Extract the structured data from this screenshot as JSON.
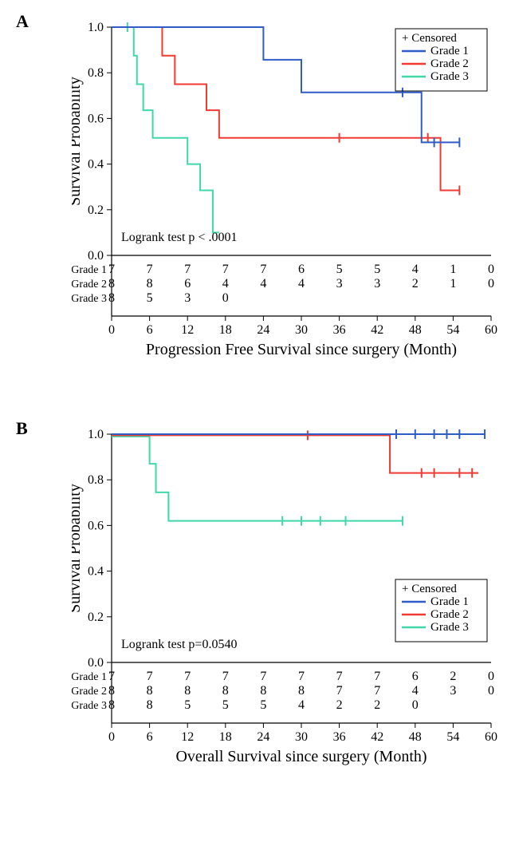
{
  "colors": {
    "grade1": "#2f5cc8",
    "grade2": "#f03a32",
    "grade3": "#41d7a8",
    "axis": "#000000",
    "bg": "#ffffff"
  },
  "common": {
    "legend_title": "+ Censored",
    "legend_items": [
      "Grade 1",
      "Grade 2",
      "Grade 3"
    ],
    "risk_labels": [
      "Grade 1",
      "Grade 2",
      "Grade 3"
    ],
    "y_label": "Survival Probability",
    "y_ticks": [
      0.0,
      0.2,
      0.4,
      0.6,
      0.8,
      1.0
    ],
    "x_ticks": [
      0,
      6,
      12,
      18,
      24,
      30,
      36,
      42,
      48,
      54,
      60
    ],
    "tick_fontsize": 16,
    "axis_title_fontsize": 20,
    "line_width": 2,
    "censor_tick_len": 6
  },
  "panelA": {
    "label": "A",
    "x_label": "Progression Free Survival since surgery (Month)",
    "xlim": [
      0,
      60
    ],
    "ylim": [
      0,
      1.0
    ],
    "annotation": "Logrank test p < .0001",
    "series": {
      "grade1": {
        "steps": [
          [
            0,
            1.0
          ],
          [
            24,
            1.0
          ],
          [
            24,
            0.857
          ],
          [
            30,
            0.857
          ],
          [
            30,
            0.714
          ],
          [
            49,
            0.714
          ],
          [
            49,
            0.495
          ],
          [
            55,
            0.495
          ]
        ],
        "censor": [
          [
            46,
            0.714
          ],
          [
            51,
            0.495
          ],
          [
            55,
            0.495
          ]
        ]
      },
      "grade2": {
        "steps": [
          [
            0,
            1.0
          ],
          [
            8,
            1.0
          ],
          [
            8,
            0.875
          ],
          [
            10,
            0.875
          ],
          [
            10,
            0.75
          ],
          [
            15,
            0.75
          ],
          [
            15,
            0.636
          ],
          [
            17,
            0.636
          ],
          [
            17,
            0.515
          ],
          [
            52,
            0.515
          ],
          [
            52,
            0.285
          ],
          [
            55,
            0.285
          ]
        ],
        "censor": [
          [
            36,
            0.515
          ],
          [
            50,
            0.515
          ],
          [
            55,
            0.285
          ]
        ]
      },
      "grade3": {
        "steps": [
          [
            0,
            1.0
          ],
          [
            3.5,
            1.0
          ],
          [
            3.5,
            0.875
          ],
          [
            4,
            0.875
          ],
          [
            4,
            0.75
          ],
          [
            5,
            0.75
          ],
          [
            5,
            0.636
          ],
          [
            6.5,
            0.636
          ],
          [
            6.5,
            0.515
          ],
          [
            12,
            0.515
          ],
          [
            12,
            0.4
          ],
          [
            14,
            0.4
          ],
          [
            14,
            0.285
          ],
          [
            16,
            0.285
          ],
          [
            16,
            0.1
          ],
          [
            17,
            0.1
          ]
        ],
        "censor": [
          [
            2.5,
            1.0
          ]
        ]
      }
    },
    "risk_table": {
      "grade1": [
        7,
        7,
        7,
        7,
        7,
        6,
        5,
        5,
        4,
        1,
        0
      ],
      "grade2": [
        8,
        8,
        6,
        4,
        4,
        4,
        3,
        3,
        2,
        1,
        0
      ],
      "grade3": [
        8,
        5,
        3,
        0,
        null,
        null,
        null,
        null,
        null,
        null,
        null
      ]
    }
  },
  "panelB": {
    "label": "B",
    "x_label": "Overall Survival since surgery (Month)",
    "xlim": [
      0,
      60
    ],
    "ylim": [
      0,
      1.0
    ],
    "annotation": "Logrank test p=0.0540",
    "series": {
      "grade1": {
        "steps": [
          [
            0,
            1.0
          ],
          [
            59,
            1.0
          ]
        ],
        "censor": [
          [
            45,
            1.0
          ],
          [
            48,
            1.0
          ],
          [
            51,
            1.0
          ],
          [
            53,
            1.0
          ],
          [
            55,
            1.0
          ],
          [
            59,
            1.0
          ]
        ]
      },
      "grade2": {
        "steps": [
          [
            0,
            0.995
          ],
          [
            44,
            0.995
          ],
          [
            44,
            0.83
          ],
          [
            58,
            0.83
          ]
        ],
        "censor": [
          [
            31,
            0.995
          ],
          [
            49,
            0.83
          ],
          [
            51,
            0.83
          ],
          [
            55,
            0.83
          ],
          [
            57,
            0.83
          ]
        ]
      },
      "grade3": {
        "steps": [
          [
            0,
            0.99
          ],
          [
            6,
            0.99
          ],
          [
            6,
            0.87
          ],
          [
            7,
            0.87
          ],
          [
            7,
            0.745
          ],
          [
            9,
            0.745
          ],
          [
            9,
            0.62
          ],
          [
            46,
            0.62
          ]
        ],
        "censor": [
          [
            27,
            0.62
          ],
          [
            30,
            0.62
          ],
          [
            33,
            0.62
          ],
          [
            37,
            0.62
          ],
          [
            46,
            0.62
          ]
        ]
      }
    },
    "risk_table": {
      "grade1": [
        7,
        7,
        7,
        7,
        7,
        7,
        7,
        7,
        6,
        2,
        0
      ],
      "grade2": [
        8,
        8,
        8,
        8,
        8,
        8,
        7,
        7,
        4,
        3,
        0
      ],
      "grade3": [
        8,
        8,
        5,
        5,
        5,
        4,
        2,
        2,
        0,
        null,
        null
      ]
    }
  }
}
